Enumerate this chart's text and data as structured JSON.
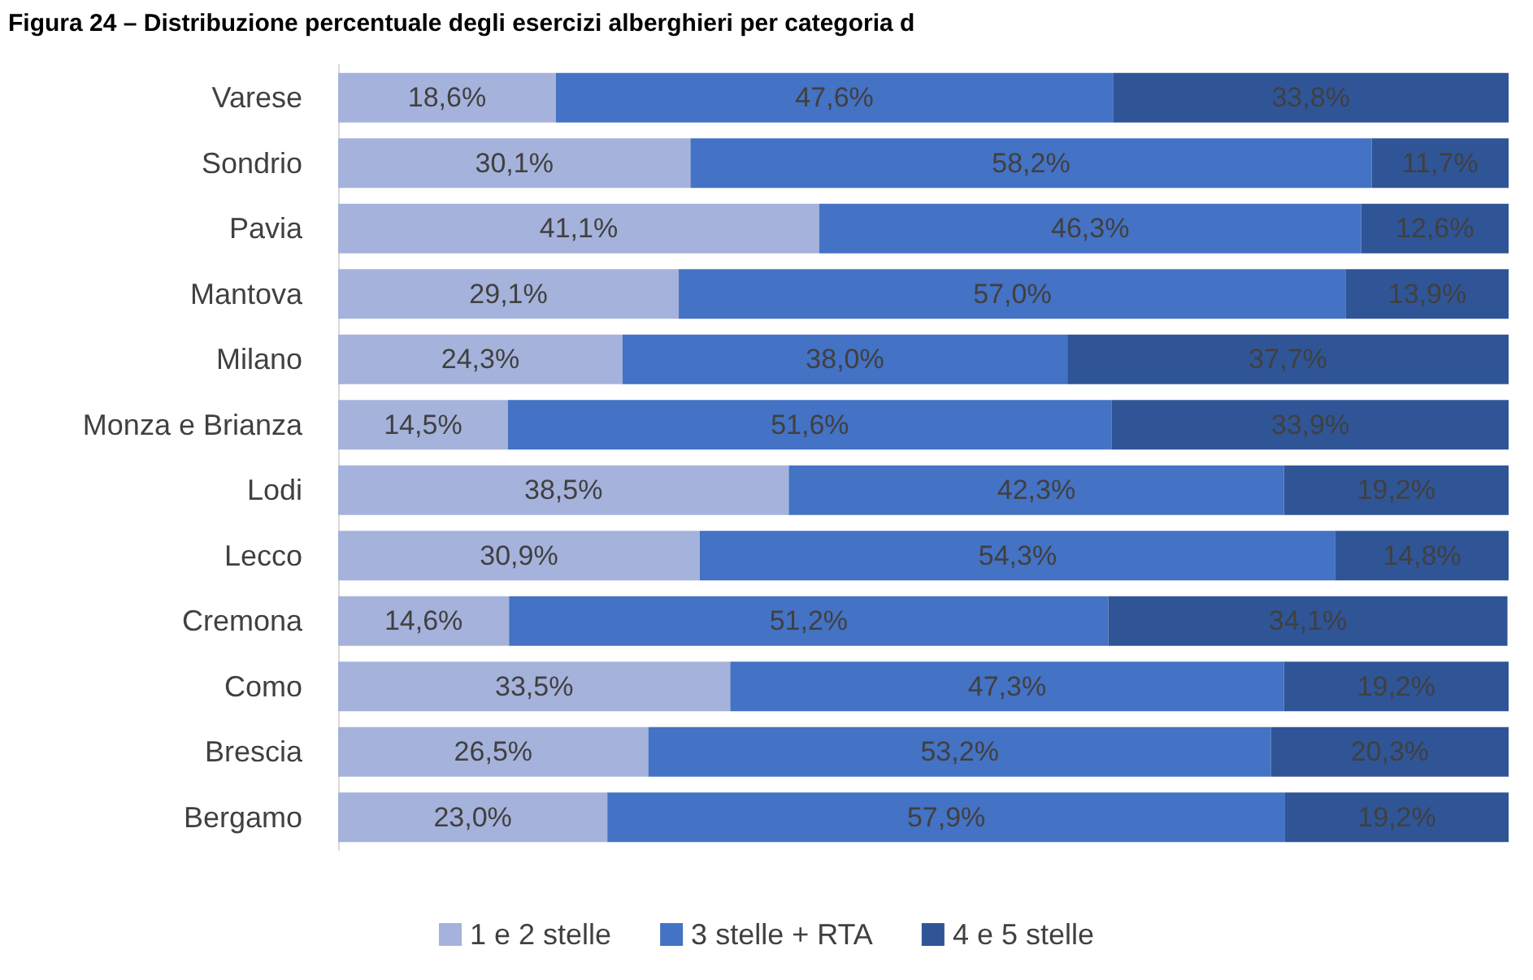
{
  "chart_data": {
    "type": "bar",
    "orientation": "horizontal",
    "stacked": true,
    "title": "Figura 24 – Distribuzione percentuale degli esercizi alberghieri per categoria d",
    "categories": [
      "Varese",
      "Sondrio",
      "Pavia",
      "Mantova",
      "Milano",
      "Monza e Brianza",
      "Lodi",
      "Lecco",
      "Cremona",
      "Como",
      "Brescia",
      "Bergamo"
    ],
    "xlim": [
      0,
      100
    ],
    "tick_labels": "y",
    "grid": false,
    "legend": "bottom",
    "series": [
      {
        "name": "1 e 2 stelle",
        "color": "#a5b2db",
        "values": [
          18.6,
          30.1,
          41.1,
          29.1,
          24.3,
          14.5,
          38.5,
          30.9,
          14.6,
          33.5,
          26.5,
          23.0
        ],
        "value_labels": [
          "18,6%",
          "30,1%",
          "41,1%",
          "29,1%",
          "24,3%",
          "14,5%",
          "38,5%",
          "30,9%",
          "14,6%",
          "33,5%",
          "26,5%",
          "23,0%"
        ]
      },
      {
        "name": "3 stelle + RTA",
        "color": "#4472c4",
        "values": [
          47.6,
          58.2,
          46.3,
          57.0,
          38.0,
          51.6,
          42.3,
          54.3,
          51.2,
          47.3,
          53.2,
          57.9
        ],
        "value_labels": [
          "47,6%",
          "58,2%",
          "46,3%",
          "57,0%",
          "38,0%",
          "51,6%",
          "42,3%",
          "54,3%",
          "51,2%",
          "47,3%",
          "53,2%",
          "57,9%"
        ]
      },
      {
        "name": "4 e 5 stelle",
        "color": "#2f5597",
        "values": [
          33.8,
          11.7,
          12.6,
          13.9,
          37.7,
          33.9,
          19.2,
          14.8,
          34.1,
          19.2,
          20.3,
          19.2
        ],
        "value_labels": [
          "33,8%",
          "11,7%",
          "12,6%",
          "13,9%",
          "37,7%",
          "33,9%",
          "19,2%",
          "14,8%",
          "34,1%",
          "19,2%",
          "20,3%",
          "19,2%"
        ]
      }
    ]
  }
}
